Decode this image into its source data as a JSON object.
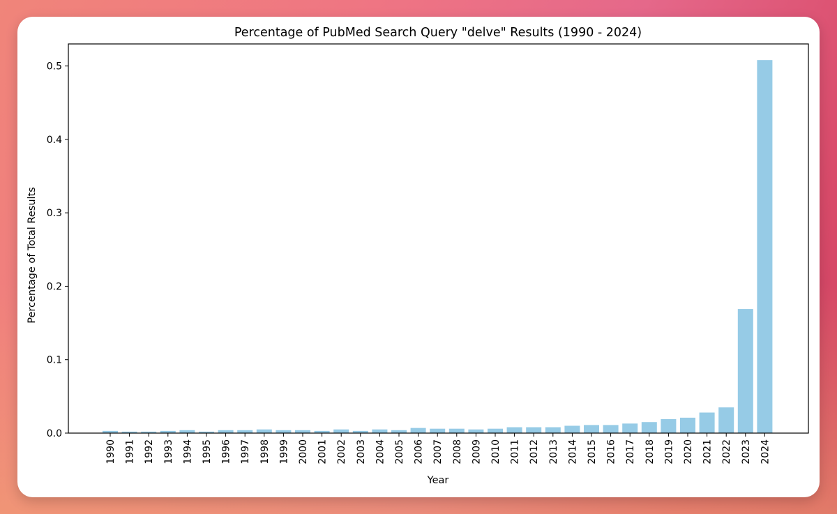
{
  "colors": {
    "bar": "#96cbe6",
    "axis": "#000000",
    "card": "#ffffff"
  },
  "chart_data": {
    "type": "bar",
    "title": "Percentage of PubMed Search Query \"delve\" Results (1990 - 2024)",
    "xlabel": "Year",
    "ylabel": "Percentage of Total Results",
    "ylim": [
      0,
      0.53
    ],
    "yticks": [
      "0.0",
      "0.1",
      "0.2",
      "0.3",
      "0.4",
      "0.5"
    ],
    "grid": false,
    "legend": "none",
    "categories": [
      "1990",
      "1991",
      "1992",
      "1993",
      "1994",
      "1995",
      "1996",
      "1997",
      "1998",
      "1999",
      "2000",
      "2001",
      "2002",
      "2003",
      "2004",
      "2005",
      "2006",
      "2007",
      "2008",
      "2009",
      "2010",
      "2011",
      "2012",
      "2013",
      "2014",
      "2015",
      "2016",
      "2017",
      "2018",
      "2019",
      "2020",
      "2021",
      "2022",
      "2023",
      "2024"
    ],
    "values": [
      0.003,
      0.002,
      0.002,
      0.003,
      0.004,
      0.002,
      0.004,
      0.004,
      0.005,
      0.004,
      0.004,
      0.003,
      0.005,
      0.003,
      0.005,
      0.004,
      0.007,
      0.006,
      0.006,
      0.005,
      0.006,
      0.008,
      0.008,
      0.008,
      0.01,
      0.011,
      0.011,
      0.013,
      0.015,
      0.019,
      0.021,
      0.028,
      0.035,
      0.169,
      0.508
    ]
  }
}
